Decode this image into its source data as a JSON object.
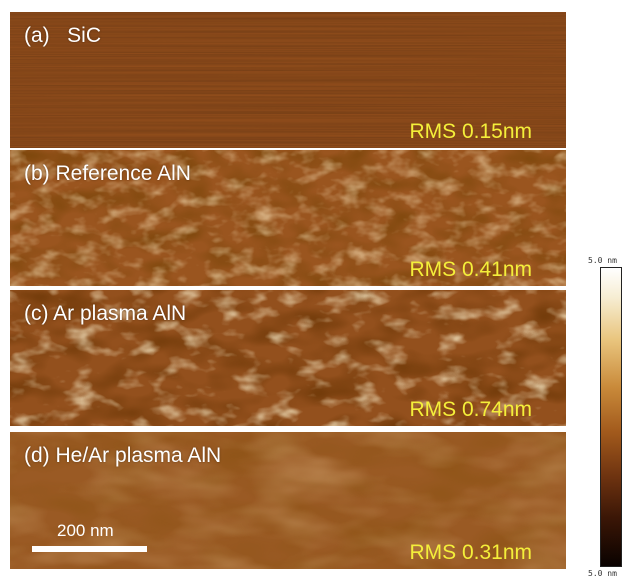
{
  "panels": [
    {
      "label": "(a)   SiC",
      "rms": "RMS 0.15nm",
      "base_color": "#8f4c1b"
    },
    {
      "label": "(b) Reference AlN",
      "rms": "RMS 0.41nm",
      "base_color": "#9a551f"
    },
    {
      "label": "(c) Ar plasma AlN",
      "rms": "RMS 0.74nm",
      "base_color": "#93501d"
    },
    {
      "label": "(d) He/Ar plasma AlN",
      "rms": "RMS 0.31nm",
      "base_color": "#9a5a24"
    }
  ],
  "scale_bar": {
    "label": "200 nm"
  },
  "color_scale": {
    "max_label": "5.0 nm",
    "min_label": "5.0 nm"
  },
  "colors": {
    "rms_text": "#f4ef3a",
    "panel_label": "#ffffff"
  }
}
